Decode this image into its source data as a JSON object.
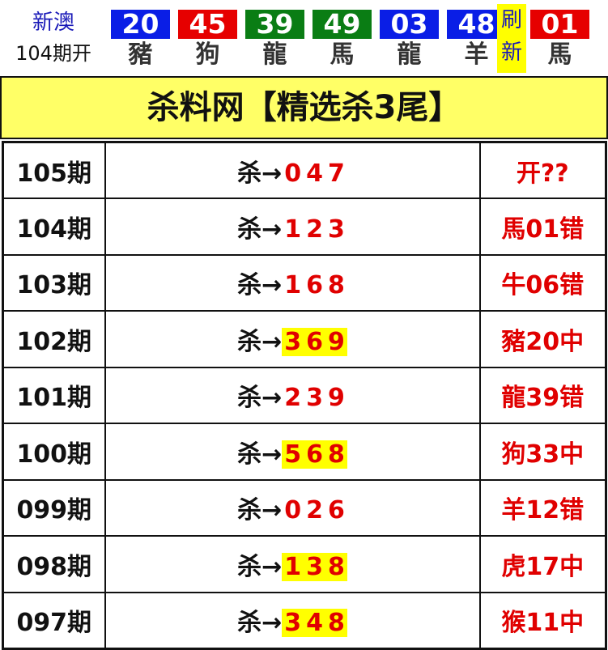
{
  "header": {
    "line1": "新澳",
    "line2": "104期开",
    "refresh_label": [
      "刷",
      "新"
    ]
  },
  "balls": [
    {
      "num": "20",
      "zodiac": "豬",
      "color": "#0a1ee6"
    },
    {
      "num": "45",
      "zodiac": "狗",
      "color": "#e60000"
    },
    {
      "num": "39",
      "zodiac": "龍",
      "color": "#0a7d14"
    },
    {
      "num": "49",
      "zodiac": "馬",
      "color": "#0a7d14"
    },
    {
      "num": "03",
      "zodiac": "龍",
      "color": "#0a1ee6"
    },
    {
      "num": "48",
      "zodiac": "羊",
      "color": "#0a1ee6"
    },
    {
      "num": "01",
      "zodiac": "馬",
      "color": "#e60000"
    }
  ],
  "title": "杀料网【精选杀3尾】",
  "rows": [
    {
      "period": "105期",
      "prefix": "杀→",
      "digits": [
        "0",
        "4",
        "7"
      ],
      "highlight": false,
      "result": "开??"
    },
    {
      "period": "104期",
      "prefix": "杀→",
      "digits": [
        "1",
        "2",
        "3"
      ],
      "highlight": false,
      "result": "馬01错"
    },
    {
      "period": "103期",
      "prefix": "杀→",
      "digits": [
        "1",
        "6",
        "8"
      ],
      "highlight": false,
      "result": "牛06错"
    },
    {
      "period": "102期",
      "prefix": "杀→",
      "digits": [
        "3",
        "6",
        "9"
      ],
      "highlight": true,
      "result": "豬20中"
    },
    {
      "period": "101期",
      "prefix": "杀→",
      "digits": [
        "2",
        "3",
        "9"
      ],
      "highlight": false,
      "result": "龍39错"
    },
    {
      "period": "100期",
      "prefix": "杀→",
      "digits": [
        "5",
        "6",
        "8"
      ],
      "highlight": true,
      "result": "狗33中"
    },
    {
      "period": "099期",
      "prefix": "杀→",
      "digits": [
        "0",
        "2",
        "6"
      ],
      "highlight": false,
      "result": "羊12错"
    },
    {
      "period": "098期",
      "prefix": "杀→",
      "digits": [
        "1",
        "3",
        "8"
      ],
      "highlight": true,
      "result": "虎17中"
    },
    {
      "period": "097期",
      "prefix": "杀→",
      "digits": [
        "3",
        "4",
        "8"
      ],
      "highlight": true,
      "result": "猴11中"
    }
  ]
}
